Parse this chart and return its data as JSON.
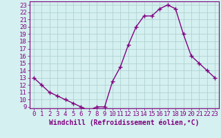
{
  "x": [
    0,
    1,
    2,
    3,
    4,
    5,
    6,
    7,
    8,
    9,
    10,
    11,
    12,
    13,
    14,
    15,
    16,
    17,
    18,
    19,
    20,
    21,
    22,
    23
  ],
  "y": [
    13,
    12,
    11,
    10.5,
    10,
    9.5,
    9,
    8.5,
    9,
    9,
    12.5,
    14.5,
    17.5,
    20,
    21.5,
    21.5,
    22.5,
    23,
    22.5,
    19,
    16,
    15,
    14,
    13
  ],
  "line_color": "#800080",
  "marker_color": "#800080",
  "bg_color": "#d5f0f0",
  "grid_color": "#aacccc",
  "axis_color": "#800080",
  "xlabel": "Windchill (Refroidissement éolien,°C)",
  "xlim": [
    -0.5,
    23.5
  ],
  "ylim": [
    8.8,
    23.5
  ],
  "yticks": [
    9,
    10,
    11,
    12,
    13,
    14,
    15,
    16,
    17,
    18,
    19,
    20,
    21,
    22,
    23
  ],
  "xticks": [
    0,
    1,
    2,
    3,
    4,
    5,
    6,
    7,
    8,
    9,
    10,
    11,
    12,
    13,
    14,
    15,
    16,
    17,
    18,
    19,
    20,
    21,
    22,
    23
  ],
  "font_size": 6.5,
  "xlabel_font_size": 7,
  "marker_size": 2.5,
  "line_width": 1.0
}
